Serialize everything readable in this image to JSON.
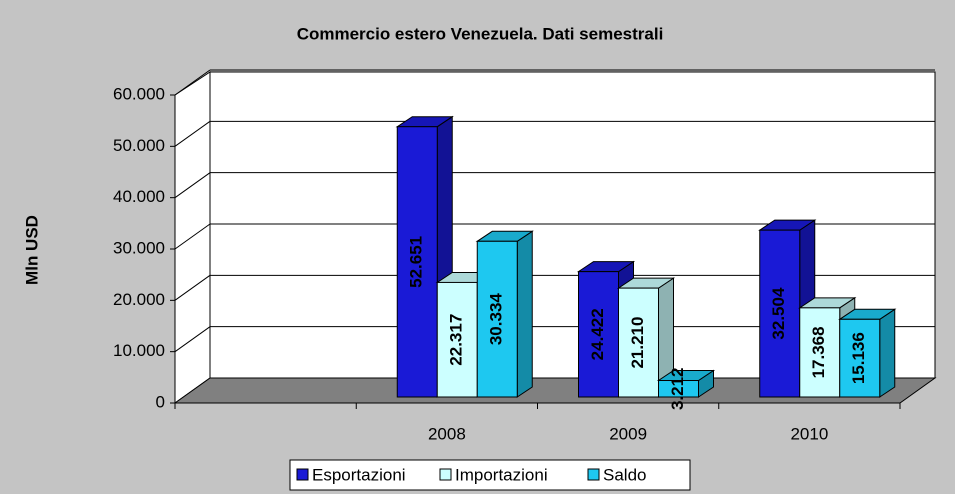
{
  "chart_data": {
    "type": "bar3d",
    "title": "Commercio estero Venezuela. Dati semestrali",
    "y_label": "Mln USD",
    "categories": [
      null,
      "2008",
      "2009",
      "2010"
    ],
    "series": [
      {
        "name": "Esportazioni",
        "color": "#1a1ad6",
        "values": [
          null,
          52651,
          24422,
          32504
        ],
        "value_labels": [
          null,
          "52.651",
          "24.422",
          "32.504"
        ]
      },
      {
        "name": "Importazioni",
        "color": "#ccffff",
        "values": [
          null,
          22317,
          21210,
          17368
        ],
        "value_labels": [
          null,
          "22.317",
          "21.210",
          "17.368"
        ]
      },
      {
        "name": "Saldo",
        "color": "#1ec8f0",
        "values": [
          null,
          30334,
          3212,
          15136
        ],
        "value_labels": [
          null,
          "30.334",
          "3.212",
          "15.136"
        ]
      }
    ],
    "ylim": [
      0,
      60000
    ],
    "yticks": [
      0,
      {
        "value": 10000,
        "label": "10.000"
      },
      {
        "value": 20000,
        "label": "20.000"
      },
      {
        "value": 30000,
        "label": "30.000"
      },
      {
        "value": 40000,
        "label": "40.000"
      },
      {
        "value": 50000,
        "label": "50.000"
      },
      {
        "value": 60000,
        "label": "60.000"
      }
    ],
    "grid": true,
    "legend": "bottom"
  }
}
